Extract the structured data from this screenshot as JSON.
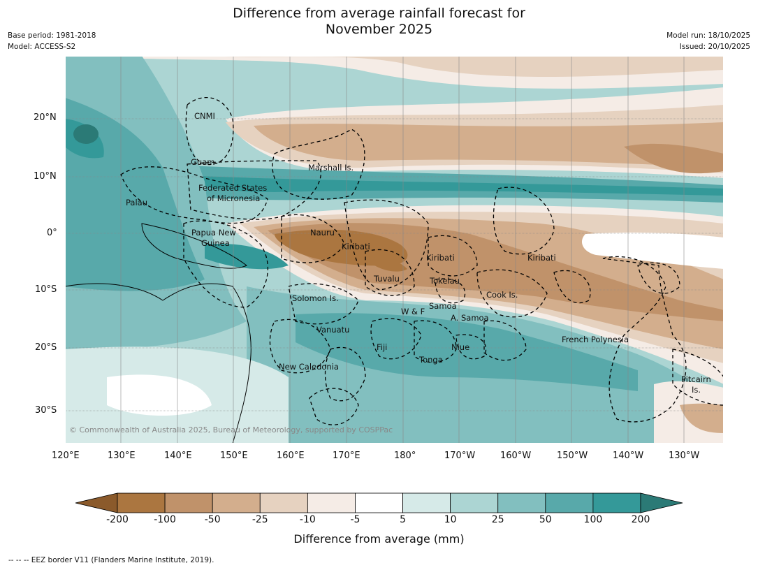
{
  "title_line1": "Difference from average rainfall forecast for",
  "title_line2": "November 2025",
  "base_period": "Base period: 1981-2018",
  "model": "Model: ACCESS-S2",
  "model_run": "Model run: 18/10/2025",
  "issued": "Issued: 20/10/2025",
  "lon_ticks": [
    "120°E",
    "130°E",
    "140°E",
    "150°E",
    "160°E",
    "170°E",
    "180°",
    "170°W",
    "160°W",
    "150°W",
    "140°W",
    "130°W"
  ],
  "lat_ticks": [
    "20°N",
    "10°N",
    "0°",
    "10°S",
    "20°S",
    "30°S"
  ],
  "places": [
    "CNMI",
    "Guam",
    "Marshall Is.",
    "Federated States",
    "of Micronesia",
    "Palau",
    "Papua New",
    "Guinea",
    "Nauru",
    "Kiribati",
    "Kiribati",
    "Kiribati",
    "Tuvalu",
    "Tokelau",
    "Cook Is.",
    "Solomon Is.",
    "Samoa",
    "W & F",
    "A. Samoa",
    "Vanuatu",
    "Fiji",
    "Niue",
    "Tonga",
    "French Polynesia",
    "New Caledonia",
    "Pitcairn",
    "Is."
  ],
  "copyright": "© Commonwealth of Australia 2025, Bureau of Meteorology, supported by COSPPac",
  "colorbar": {
    "labels": [
      "-200",
      "-100",
      "-50",
      "-25",
      "-10",
      "-5",
      "5",
      "10",
      "25",
      "50",
      "100",
      "200"
    ],
    "colors": [
      "#8b5a2b",
      "#ab7640",
      "#c0926a",
      "#d3ae8d",
      "#e6d2c0",
      "#f5ece6",
      "#ffffff",
      "#d6eae8",
      "#acd5d3",
      "#82bfbf",
      "#58a9aa",
      "#349999",
      "#2b7a76"
    ],
    "title": "Difference from average (mm)"
  },
  "footnote": "-- -- -- EEZ border V11 (Flanders Marine Institute, 2019)."
}
